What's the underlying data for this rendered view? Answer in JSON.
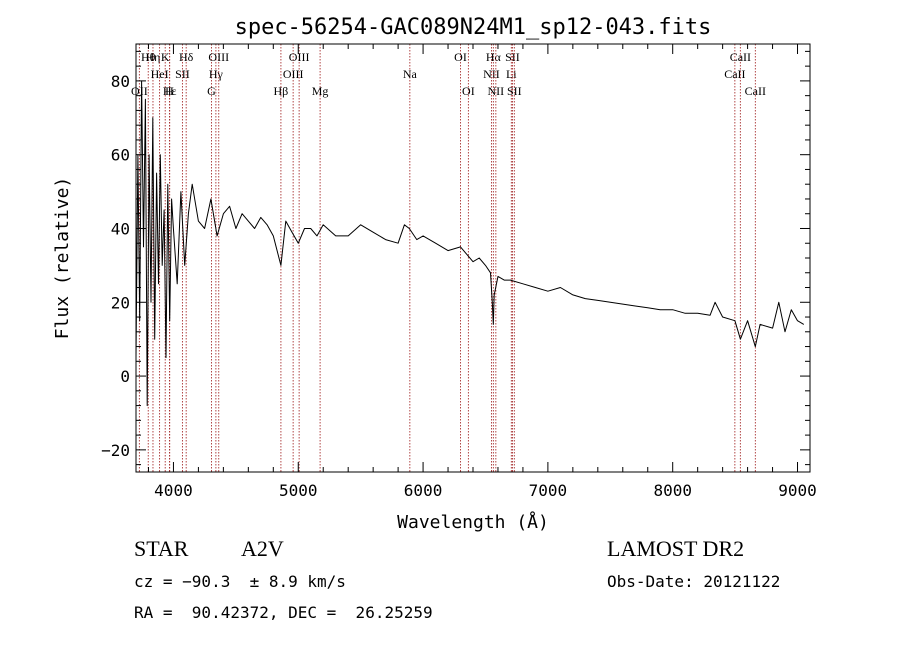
{
  "chart_data": {
    "type": "line",
    "title": "spec-56254-GAC089N24M1_sp12-043.fits",
    "xlabel": "Wavelength (Å)",
    "ylabel": "Flux (relative)",
    "xlim": [
      3700,
      9100
    ],
    "ylim": [
      -26,
      90
    ],
    "xticks": [
      4000,
      5000,
      6000,
      7000,
      8000,
      9000
    ],
    "yticks": [
      -20,
      0,
      20,
      40,
      60,
      80
    ],
    "grid": false,
    "line_color": "#000000",
    "marker_color": "#a83232",
    "series": [
      {
        "x": [
          3700,
          3715,
          3730,
          3745,
          3760,
          3775,
          3790,
          3805,
          3820,
          3835,
          3850,
          3865,
          3880,
          3895,
          3910,
          3925,
          3940,
          3955,
          3970,
          3985,
          4000,
          4030,
          4060,
          4090,
          4120,
          4150,
          4200,
          4250,
          4300,
          4350,
          4400,
          4450,
          4500,
          4550,
          4600,
          4650,
          4700,
          4750,
          4800,
          4861,
          4900,
          4950,
          5000,
          5050,
          5100,
          5150,
          5200,
          5300,
          5400,
          5500,
          5600,
          5700,
          5800,
          5850,
          5890,
          5950,
          6000,
          6100,
          6200,
          6300,
          6400,
          6450,
          6500,
          6540,
          6555,
          6563,
          6570,
          6600,
          6650,
          6700,
          6800,
          6900,
          7000,
          7100,
          7200,
          7300,
          7400,
          7500,
          7600,
          7700,
          7800,
          7900,
          8000,
          8100,
          8200,
          8300,
          8340,
          8400,
          8498,
          8542,
          8600,
          8662,
          8700,
          8800,
          8850,
          8900,
          8950,
          9000,
          9050
        ],
        "y": [
          5,
          60,
          15,
          80,
          35,
          75,
          -8,
          60,
          20,
          70,
          10,
          55,
          25,
          60,
          30,
          45,
          5,
          52,
          15,
          48,
          40,
          25,
          50,
          30,
          44,
          52,
          42,
          40,
          48,
          38,
          44,
          46,
          40,
          44,
          42,
          40,
          43,
          41,
          38,
          30,
          42,
          39,
          36,
          40,
          40,
          38,
          41,
          38,
          38,
          41,
          39,
          37,
          36,
          41,
          40,
          37,
          38,
          36,
          34,
          35,
          31,
          32,
          30,
          28,
          20,
          14,
          22,
          27,
          26,
          26,
          25,
          24,
          23,
          24,
          22,
          21,
          20.5,
          20,
          19.5,
          19,
          18.5,
          18,
          18,
          17,
          17,
          16.5,
          20,
          16,
          15,
          10,
          15,
          8,
          14,
          13,
          20,
          12,
          18,
          15,
          14
        ]
      }
    ],
    "line_ids": [
      {
        "name": "OII",
        "wavelength": 3727,
        "row": 3
      },
      {
        "name": "Hθ",
        "wavelength": 3798,
        "row": 1
      },
      {
        "name": "Hη",
        "wavelength": 3836,
        "row": 1
      },
      {
        "name": "HeI",
        "wavelength": 3889,
        "row": 2
      },
      {
        "name": "K",
        "wavelength": 3934,
        "row": 1
      },
      {
        "name": "H",
        "wavelength": 3968,
        "row": 3
      },
      {
        "name": "Hε",
        "wavelength": 3970,
        "row": 3
      },
      {
        "name": "SII",
        "wavelength": 4072,
        "row": 2
      },
      {
        "name": "Hδ",
        "wavelength": 4102,
        "row": 1
      },
      {
        "name": "G",
        "wavelength": 4305,
        "row": 3
      },
      {
        "name": "Hγ",
        "wavelength": 4340,
        "row": 2
      },
      {
        "name": "OIII",
        "wavelength": 4363,
        "row": 1
      },
      {
        "name": "Hβ",
        "wavelength": 4861,
        "row": 3
      },
      {
        "name": "OIII",
        "wavelength": 4959,
        "row": 2
      },
      {
        "name": "OIII",
        "wavelength": 5007,
        "row": 1
      },
      {
        "name": "Mg",
        "wavelength": 5175,
        "row": 3
      },
      {
        "name": "Na",
        "wavelength": 5894,
        "row": 2
      },
      {
        "name": "OI",
        "wavelength": 6300,
        "row": 1
      },
      {
        "name": "OI",
        "wavelength": 6363,
        "row": 3
      },
      {
        "name": "NII",
        "wavelength": 6548,
        "row": 2
      },
      {
        "name": "Hα",
        "wavelength": 6563,
        "row": 1
      },
      {
        "name": "NII",
        "wavelength": 6583,
        "row": 3
      },
      {
        "name": "Li",
        "wavelength": 6707,
        "row": 2
      },
      {
        "name": "SII",
        "wavelength": 6716,
        "row": 1
      },
      {
        "name": "SII",
        "wavelength": 6731,
        "row": 3
      },
      {
        "name": "CaII",
        "wavelength": 8498,
        "row": 2
      },
      {
        "name": "CaII",
        "wavelength": 8542,
        "row": 1
      },
      {
        "name": "CaII",
        "wavelength": 8662,
        "row": 3
      }
    ]
  },
  "info": {
    "object_class": "STAR",
    "subclass": "A2V",
    "redshift": "cz = −90.3  ± 8.9 km/s",
    "coords": "RA =  90.42372, DEC =  26.25259",
    "survey": "LAMOST DR2",
    "obs_date": "Obs-Date: 20121122"
  }
}
